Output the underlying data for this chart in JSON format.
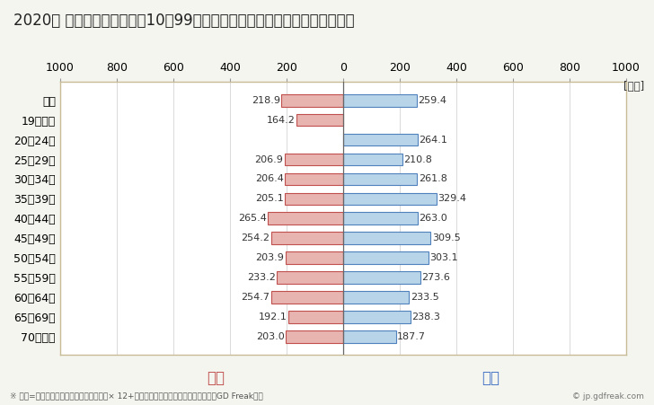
{
  "title": "2020年 民間企業（従業者数10〜99人）フルタイム労働者の男女別平均年収",
  "unit_label": "[万円]",
  "categories": [
    "全体",
    "19歳以下",
    "20〜24歳",
    "25〜29歳",
    "30〜34歳",
    "35〜39歳",
    "40〜44歳",
    "45〜49歳",
    "50〜54歳",
    "55〜59歳",
    "60〜64歳",
    "65〜69歳",
    "70歳以上"
  ],
  "female_values": [
    218.9,
    164.2,
    0.0,
    206.9,
    206.4,
    205.1,
    265.4,
    254.2,
    203.9,
    233.2,
    254.7,
    192.1,
    203.0
  ],
  "male_values": [
    259.4,
    0.0,
    264.1,
    210.8,
    261.8,
    329.4,
    263.0,
    309.5,
    303.1,
    273.6,
    233.5,
    238.3,
    187.7
  ],
  "female_color": "#e8b4b0",
  "male_color": "#b8d4e8",
  "female_border_color": "#c0504d",
  "male_border_color": "#4f81bd",
  "female_label": "女性",
  "male_label": "男性",
  "female_label_color": "#c0504d",
  "male_label_color": "#4472c4",
  "xlim": [
    -1000,
    1000
  ],
  "xticks": [
    -1000,
    -800,
    -600,
    -400,
    -200,
    0,
    200,
    400,
    600,
    800,
    1000
  ],
  "xticklabels": [
    "1000",
    "800",
    "600",
    "400",
    "200",
    "0",
    "200",
    "400",
    "600",
    "800",
    "1000"
  ],
  "background_color": "#f5f5f0",
  "plot_bg_color": "#ffffff",
  "grid_color": "#cccccc",
  "border_color": "#c8bc96",
  "title_fontsize": 12,
  "tick_fontsize": 9,
  "bar_label_fontsize": 8,
  "legend_fontsize": 12,
  "footnote": "※ 年収=「きまって支給する現金給与額」× 12+「年間賞与その他特別給与額」としてGD Freak推計",
  "copyright": "© jp.gdfreak.com"
}
